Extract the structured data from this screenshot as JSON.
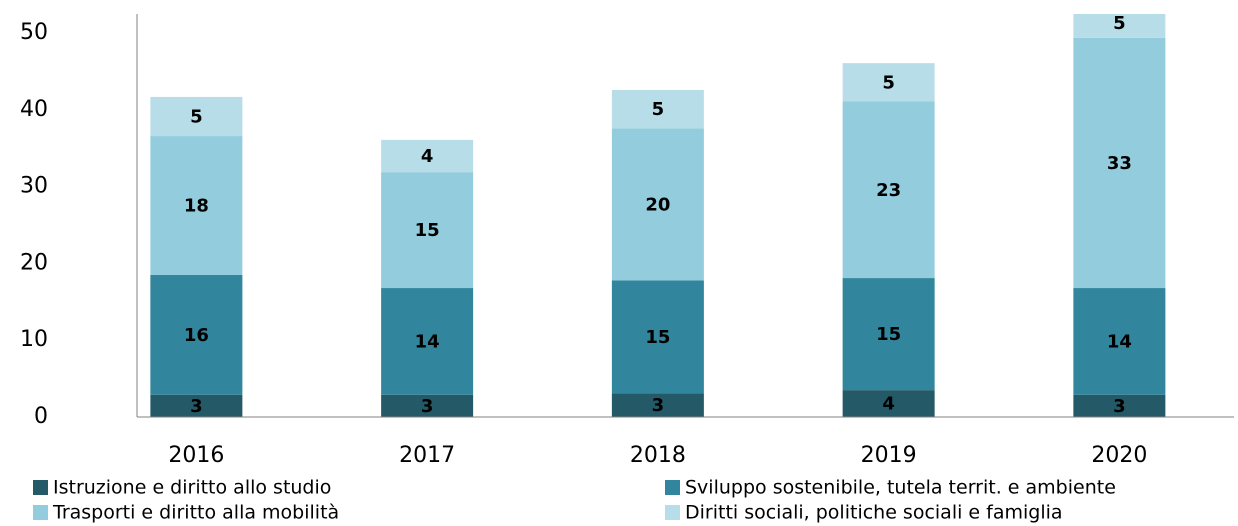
{
  "chart_data": {
    "type": "stacked_bar",
    "categories": [
      "2016",
      "2017",
      "2018",
      "2019",
      "2020"
    ],
    "series": [
      {
        "name": "Istruzione e diritto allo studio",
        "color": "#245a68",
        "values": [
          2.9,
          2.9,
          3.1,
          3.5,
          2.9
        ],
        "value_labels": [
          "3",
          "3",
          "3",
          "4",
          "3"
        ]
      },
      {
        "name": "Sviluppo sostenibile, tutela territ. e ambiente",
        "color": "#31859c",
        "values": [
          15.6,
          13.9,
          14.7,
          14.6,
          13.9
        ],
        "value_labels": [
          "16",
          "14",
          "15",
          "15",
          "14"
        ]
      },
      {
        "name": "Trasporti e diritto alla mobilità",
        "color": "#93cddd",
        "values": [
          18.1,
          15.1,
          19.8,
          23.0,
          32.6
        ],
        "value_labels": [
          "18",
          "15",
          "20",
          "23",
          "33"
        ]
      },
      {
        "name": "Diritti sociali, politiche sociali e famiglia",
        "color": "#b7dee8",
        "values": [
          5.1,
          4.2,
          5.0,
          5.0,
          4.6
        ],
        "value_labels": [
          "5",
          "4",
          "5",
          "5",
          "5"
        ]
      }
    ],
    "ylim": [
      0,
      52.5
    ],
    "yticks": [
      0,
      10,
      20,
      30,
      40,
      50
    ]
  }
}
